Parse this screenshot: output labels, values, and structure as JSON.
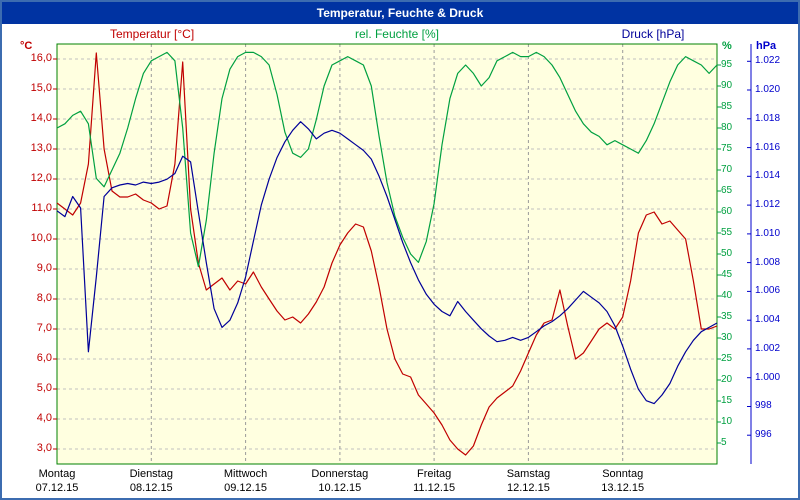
{
  "window": {
    "title": "Temperatur, Feuchte & Druck"
  },
  "chart_data": {
    "type": "line",
    "title": "Temperatur, Feuchte & Druck",
    "colors": {
      "plot_bg": "#ffffe0",
      "grid": "#c0c0c0",
      "grid_v": "#9a9a9a",
      "frame": "#008000",
      "titlebar": "#0033a2",
      "border": "#3c6cb0"
    },
    "x": {
      "step_hours": 2,
      "total_hours": 168,
      "days": [
        {
          "name": "Montag",
          "date": "07.12.15"
        },
        {
          "name": "Dienstag",
          "date": "08.12.15"
        },
        {
          "name": "Mittwoch",
          "date": "09.12.15"
        },
        {
          "name": "Donnerstag",
          "date": "10.12.15"
        },
        {
          "name": "Freitag",
          "date": "11.12.15"
        },
        {
          "name": "Samstag",
          "date": "12.12.15"
        },
        {
          "name": "Sonntag",
          "date": "13.12.15"
        }
      ]
    },
    "axes": {
      "temp": {
        "label": "°C",
        "color": "#c00000",
        "min": 2.5,
        "max": 16.5,
        "ticks": [
          16,
          15,
          14,
          13,
          12,
          11,
          10,
          9,
          8,
          7,
          6,
          5,
          4,
          3
        ],
        "tick_labels": [
          "16,0",
          "15,0",
          "14,0",
          "13,0",
          "12,0",
          "11,0",
          "10,0",
          "9,0",
          "8,0",
          "7,0",
          "6,0",
          "5,0",
          "4,0",
          "3,0"
        ]
      },
      "humidity": {
        "label": "%",
        "color": "#00a040",
        "min": 0,
        "max": 100,
        "ticks": [
          95,
          90,
          85,
          80,
          75,
          70,
          65,
          60,
          55,
          50,
          45,
          40,
          35,
          30,
          25,
          20,
          15,
          10,
          5
        ],
        "tick_labels": [
          "95",
          "90",
          "85",
          "80",
          "75",
          "70",
          "65",
          "60",
          "55",
          "50",
          "45",
          "40",
          "35",
          "30",
          "25",
          "20",
          "15",
          "10",
          "5"
        ]
      },
      "pressure": {
        "label": "hPa",
        "color": "#0000cc",
        "min": 994.0,
        "max": 1023.2,
        "ticks": [
          1022,
          1020,
          1018,
          1016,
          1014,
          1012,
          1010,
          1008,
          1006,
          1004,
          1002,
          1000,
          998,
          996
        ],
        "tick_labels": [
          "1.022",
          "1.020",
          "1.018",
          "1.016",
          "1.014",
          "1.012",
          "1.010",
          "1.008",
          "1.006",
          "1.004",
          "1.002",
          "1.000",
          "998",
          "996"
        ]
      }
    },
    "series": [
      {
        "name": "Temperatur [°C]",
        "axis": "temp",
        "color": "#c00000",
        "values": [
          11.2,
          11.0,
          10.8,
          11.2,
          12.5,
          16.2,
          13.0,
          11.6,
          11.4,
          11.4,
          11.5,
          11.3,
          11.2,
          11.0,
          11.1,
          12.5,
          15.9,
          11.0,
          9.2,
          8.3,
          8.5,
          8.7,
          8.3,
          8.6,
          8.5,
          8.9,
          8.4,
          8.0,
          7.6,
          7.3,
          7.4,
          7.2,
          7.5,
          7.9,
          8.4,
          9.2,
          9.8,
          10.2,
          10.5,
          10.4,
          9.6,
          8.4,
          7.0,
          6.0,
          5.5,
          5.4,
          4.8,
          4.5,
          4.2,
          3.8,
          3.3,
          3.0,
          2.8,
          3.1,
          3.8,
          4.4,
          4.7,
          4.9,
          5.1,
          5.6,
          6.2,
          6.8,
          7.2,
          7.3,
          8.3,
          7.1,
          6.0,
          6.2,
          6.6,
          7.0,
          7.2,
          7.0,
          7.4,
          8.6,
          10.2,
          10.8,
          10.9,
          10.5,
          10.6,
          10.3,
          10.0,
          8.6,
          7.0,
          7.0,
          7.1
        ]
      },
      {
        "name": "rel. Feuchte [%]",
        "axis": "humidity",
        "color": "#00a040",
        "values": [
          80,
          81,
          83,
          84,
          81,
          68,
          66,
          70,
          74,
          80,
          87,
          93,
          96,
          97,
          98,
          96,
          80,
          55,
          47,
          58,
          74,
          87,
          94,
          97,
          98,
          98,
          97,
          95,
          88,
          79,
          74,
          73,
          75,
          82,
          90,
          95,
          96,
          97,
          96,
          95,
          90,
          78,
          67,
          59,
          54,
          50,
          48,
          53,
          62,
          76,
          87,
          93,
          95,
          93,
          90,
          92,
          96,
          97,
          98,
          97,
          97,
          98,
          97,
          95,
          92,
          88,
          84,
          81,
          79,
          78,
          76,
          77,
          76,
          75,
          74,
          77,
          81,
          86,
          91,
          95,
          97,
          96,
          95,
          93,
          95
        ]
      },
      {
        "name": "Druck [hPa]",
        "axis": "pressure",
        "color": "#000099",
        "values": [
          1011.6,
          1011.2,
          1012.6,
          1011.8,
          1001.8,
          1007.0,
          1012.6,
          1013.2,
          1013.4,
          1013.5,
          1013.4,
          1013.6,
          1013.5,
          1013.6,
          1013.8,
          1014.2,
          1015.4,
          1015.0,
          1011.5,
          1008.0,
          1004.8,
          1003.5,
          1004.0,
          1005.2,
          1007.0,
          1009.5,
          1012.0,
          1013.8,
          1015.3,
          1016.4,
          1017.2,
          1017.8,
          1017.3,
          1016.6,
          1017.0,
          1017.2,
          1017.0,
          1016.6,
          1016.2,
          1015.8,
          1015.2,
          1014.0,
          1012.6,
          1011.0,
          1009.4,
          1008.0,
          1006.8,
          1005.8,
          1005.1,
          1004.6,
          1004.3,
          1005.3,
          1004.6,
          1004.0,
          1003.4,
          1002.9,
          1002.5,
          1002.6,
          1002.8,
          1002.6,
          1002.8,
          1003.2,
          1003.6,
          1003.9,
          1004.3,
          1004.8,
          1005.4,
          1006.0,
          1005.6,
          1005.2,
          1004.6,
          1003.6,
          1002.2,
          1000.6,
          999.2,
          998.4,
          998.2,
          998.8,
          999.6,
          1000.8,
          1001.8,
          1002.6,
          1003.2,
          1003.5,
          1003.8
        ]
      }
    ]
  }
}
